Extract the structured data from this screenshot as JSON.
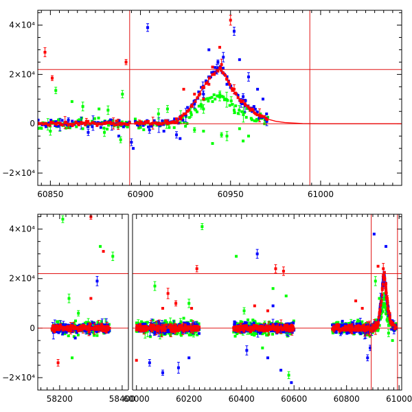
{
  "chart_data": [
    {
      "type": "scatter",
      "id": "top",
      "title": "",
      "xlabel": "",
      "ylabel": "",
      "xlim": [
        60843,
        61045
      ],
      "ylim": [
        -25000,
        46000
      ],
      "x_ticks": [
        60850,
        60900,
        60950,
        61000
      ],
      "x_tick_labels": [
        "60850",
        "60900",
        "60950",
        "61000"
      ],
      "y_ticks": [
        -20000,
        0,
        20000,
        40000
      ],
      "y_tick_labels": [
        "−2×10⁴",
        "0",
        "2×10⁴",
        "4×10⁴"
      ],
      "hlines": [
        0,
        22000
      ],
      "vlines": [
        60894,
        60994
      ],
      "model_curve": {
        "name": "model",
        "color": "#ff0000",
        "x": [
          60843,
          60900,
          60920,
          60925,
          60930,
          60935,
          60940,
          60944,
          60947,
          60950,
          60955,
          60960,
          60965,
          60970,
          60975,
          60980,
          60990,
          61000,
          61045
        ],
        "y": [
          0,
          0,
          500,
          4000,
          9000,
          15000,
          20000,
          22000,
          20000,
          15000,
          10000,
          6500,
          3800,
          2000,
          1000,
          500,
          100,
          0,
          0
        ]
      },
      "series": [
        {
          "name": "red",
          "color": "#ff0000",
          "points": [
            [
              60847,
              29000
            ],
            [
              60851,
              18500
            ],
            [
              60892,
              25000
            ],
            [
              60950,
              42000
            ],
            [
              60944,
              31000
            ],
            [
              60924,
              14000
            ],
            [
              60930,
              12000
            ],
            [
              60860,
              -400
            ],
            [
              60870,
              1000
            ],
            [
              60880,
              300
            ],
            [
              60900,
              800
            ],
            [
              60910,
              -200
            ],
            [
              60915,
              600
            ],
            [
              60935,
              10000
            ],
            [
              60938,
              16000
            ],
            [
              60941,
              20000
            ],
            [
              60946,
              20500
            ],
            [
              60948,
              18000
            ],
            [
              60952,
              14000
            ],
            [
              60957,
              9500
            ],
            [
              60962,
              6000
            ],
            [
              60966,
              3500
            ],
            [
              60940,
              23000
            ],
            [
              60945,
              24000
            ],
            [
              60920,
              2000
            ],
            [
              60926,
              5000
            ]
          ]
        },
        {
          "name": "blue",
          "color": "#0000ff",
          "points": [
            [
              60904,
              39000
            ],
            [
              60938,
              30000
            ],
            [
              60943,
              25000
            ],
            [
              60946,
              27000
            ],
            [
              60952,
              37500
            ],
            [
              60955,
              26000
            ],
            [
              60960,
              19000
            ],
            [
              60965,
              14000
            ],
            [
              60968,
              10000
            ],
            [
              60871,
              -3500
            ],
            [
              60888,
              -5000
            ],
            [
              60895,
              -7500
            ],
            [
              60896,
              -10000
            ],
            [
              60920,
              -4500
            ],
            [
              60922,
              -6000
            ],
            [
              60930,
              8000
            ],
            [
              60935,
              12000
            ],
            [
              60939,
              19000
            ],
            [
              60942,
              21000
            ],
            [
              60948,
              16000
            ],
            [
              60957,
              11000
            ],
            [
              60963,
              7000
            ],
            [
              60970,
              4000
            ],
            [
              60860,
              1500
            ],
            [
              60878,
              -1500
            ],
            [
              60905,
              -2500
            ],
            [
              60913,
              -3000
            ]
          ]
        },
        {
          "name": "green",
          "color": "#00ff00",
          "points": [
            [
              60853,
              13500
            ],
            [
              60862,
              9000
            ],
            [
              60868,
              7000
            ],
            [
              60877,
              6000
            ],
            [
              60882,
              5500
            ],
            [
              60890,
              12000
            ],
            [
              60910,
              4000
            ],
            [
              60915,
              6000
            ],
            [
              60928,
              4500
            ],
            [
              60935,
              6000
            ],
            [
              60940,
              9000
            ],
            [
              60944,
              11000
            ],
            [
              60947,
              10000
            ],
            [
              60952,
              5500
            ],
            [
              60948,
              -5000
            ],
            [
              60955,
              -2000
            ],
            [
              60957,
              -7000
            ],
            [
              60960,
              -5000
            ],
            [
              60940,
              -8000
            ],
            [
              60945,
              -4500
            ],
            [
              60935,
              -3000
            ],
            [
              60850,
              -3000
            ],
            [
              60868,
              -2000
            ],
            [
              60880,
              -3500
            ],
            [
              60889,
              -6500
            ],
            [
              60900,
              -1500
            ],
            [
              60925,
              -1000
            ],
            [
              60930,
              -2500
            ]
          ]
        }
      ]
    },
    {
      "type": "scatter",
      "id": "bottom",
      "title": "",
      "xlabel": "",
      "ylabel": "",
      "broken_axis": true,
      "segments": [
        {
          "xlim": [
            58130,
            58420
          ],
          "x_ticks": [
            58200,
            58400
          ],
          "x_tick_labels": [
            "58200",
            "58400"
          ]
        },
        {
          "xlim": [
            59985,
            61010
          ],
          "x_ticks": [
            60000,
            60200,
            60400,
            60600,
            60800,
            61000
          ],
          "x_tick_labels": [
            "60000",
            "60200",
            "60400",
            "60600",
            "60800",
            "61000"
          ]
        }
      ],
      "ylim": [
        -25000,
        46000
      ],
      "y_ticks": [
        -20000,
        0,
        20000,
        40000
      ],
      "y_tick_labels": [
        "−2×10⁴",
        "0",
        "2×10⁴",
        "4×10⁴"
      ],
      "hlines": [
        0,
        22000
      ],
      "vlines": [
        60894,
        60994
      ],
      "observing_seasons": [
        [
          58175,
          58360
        ],
        [
          60000,
          60240
        ],
        [
          60370,
          60600
        ],
        [
          60745,
          60990
        ]
      ],
      "model_curve": {
        "name": "model",
        "color": "#ff0000",
        "x": [
          60870,
          60900,
          60920,
          60930,
          60940,
          60944,
          60950,
          60960,
          60970,
          60990
        ],
        "y": [
          0,
          0,
          2000,
          9000,
          20000,
          22000,
          15000,
          6500,
          2000,
          100
        ]
      },
      "series": [
        {
          "name": "red",
          "color": "#ff0000",
          "points": [
            [
              58300,
              45000
            ],
            [
              58340,
              31000
            ],
            [
              58300,
              12000
            ],
            [
              58195,
              -14000
            ],
            [
              60100,
              8000
            ],
            [
              60120,
              14000
            ],
            [
              60150,
              10000
            ],
            [
              60210,
              8000
            ],
            [
              60230,
              24000
            ],
            [
              60530,
              24000
            ],
            [
              60560,
              23000
            ],
            [
              60450,
              9000
            ],
            [
              60500,
              7000
            ],
            [
              60860,
              8000
            ],
            [
              60920,
              25000
            ],
            [
              60940,
              24000
            ],
            [
              60950,
              18000
            ],
            [
              60955,
              12000
            ],
            [
              60835,
              11000
            ],
            [
              60000,
              -13000
            ]
          ]
        },
        {
          "name": "blue",
          "color": "#0000ff",
          "points": [
            [
              58320,
              19000
            ],
            [
              58250,
              -4000
            ],
            [
              60160,
              -16000
            ],
            [
              60200,
              -12000
            ],
            [
              60100,
              -18000
            ],
            [
              60050,
              -14000
            ],
            [
              60460,
              30000
            ],
            [
              60520,
              9000
            ],
            [
              60500,
              -12000
            ],
            [
              60550,
              -17000
            ],
            [
              60590,
              -22000
            ],
            [
              60420,
              -9000
            ],
            [
              60905,
              38000
            ],
            [
              60950,
              33000
            ],
            [
              60930,
              12000
            ],
            [
              60890,
              -8000
            ],
            [
              60880,
              -12000
            ]
          ]
        },
        {
          "name": "green",
          "color": "#00ff00",
          "points": [
            [
              58210,
              44000
            ],
            [
              58330,
              33000
            ],
            [
              58370,
              29000
            ],
            [
              58230,
              12000
            ],
            [
              58260,
              6000
            ],
            [
              58240,
              -12000
            ],
            [
              60070,
              17000
            ],
            [
              60250,
              41000
            ],
            [
              60200,
              10000
            ],
            [
              60180,
              4000
            ],
            [
              60380,
              29000
            ],
            [
              60410,
              7000
            ],
            [
              60570,
              13000
            ],
            [
              60520,
              16000
            ],
            [
              60580,
              -19000
            ],
            [
              60480,
              -8000
            ],
            [
              60910,
              19000
            ],
            [
              60925,
              12000
            ],
            [
              60960,
              -2000
            ],
            [
              60975,
              -5000
            ]
          ]
        }
      ]
    }
  ]
}
